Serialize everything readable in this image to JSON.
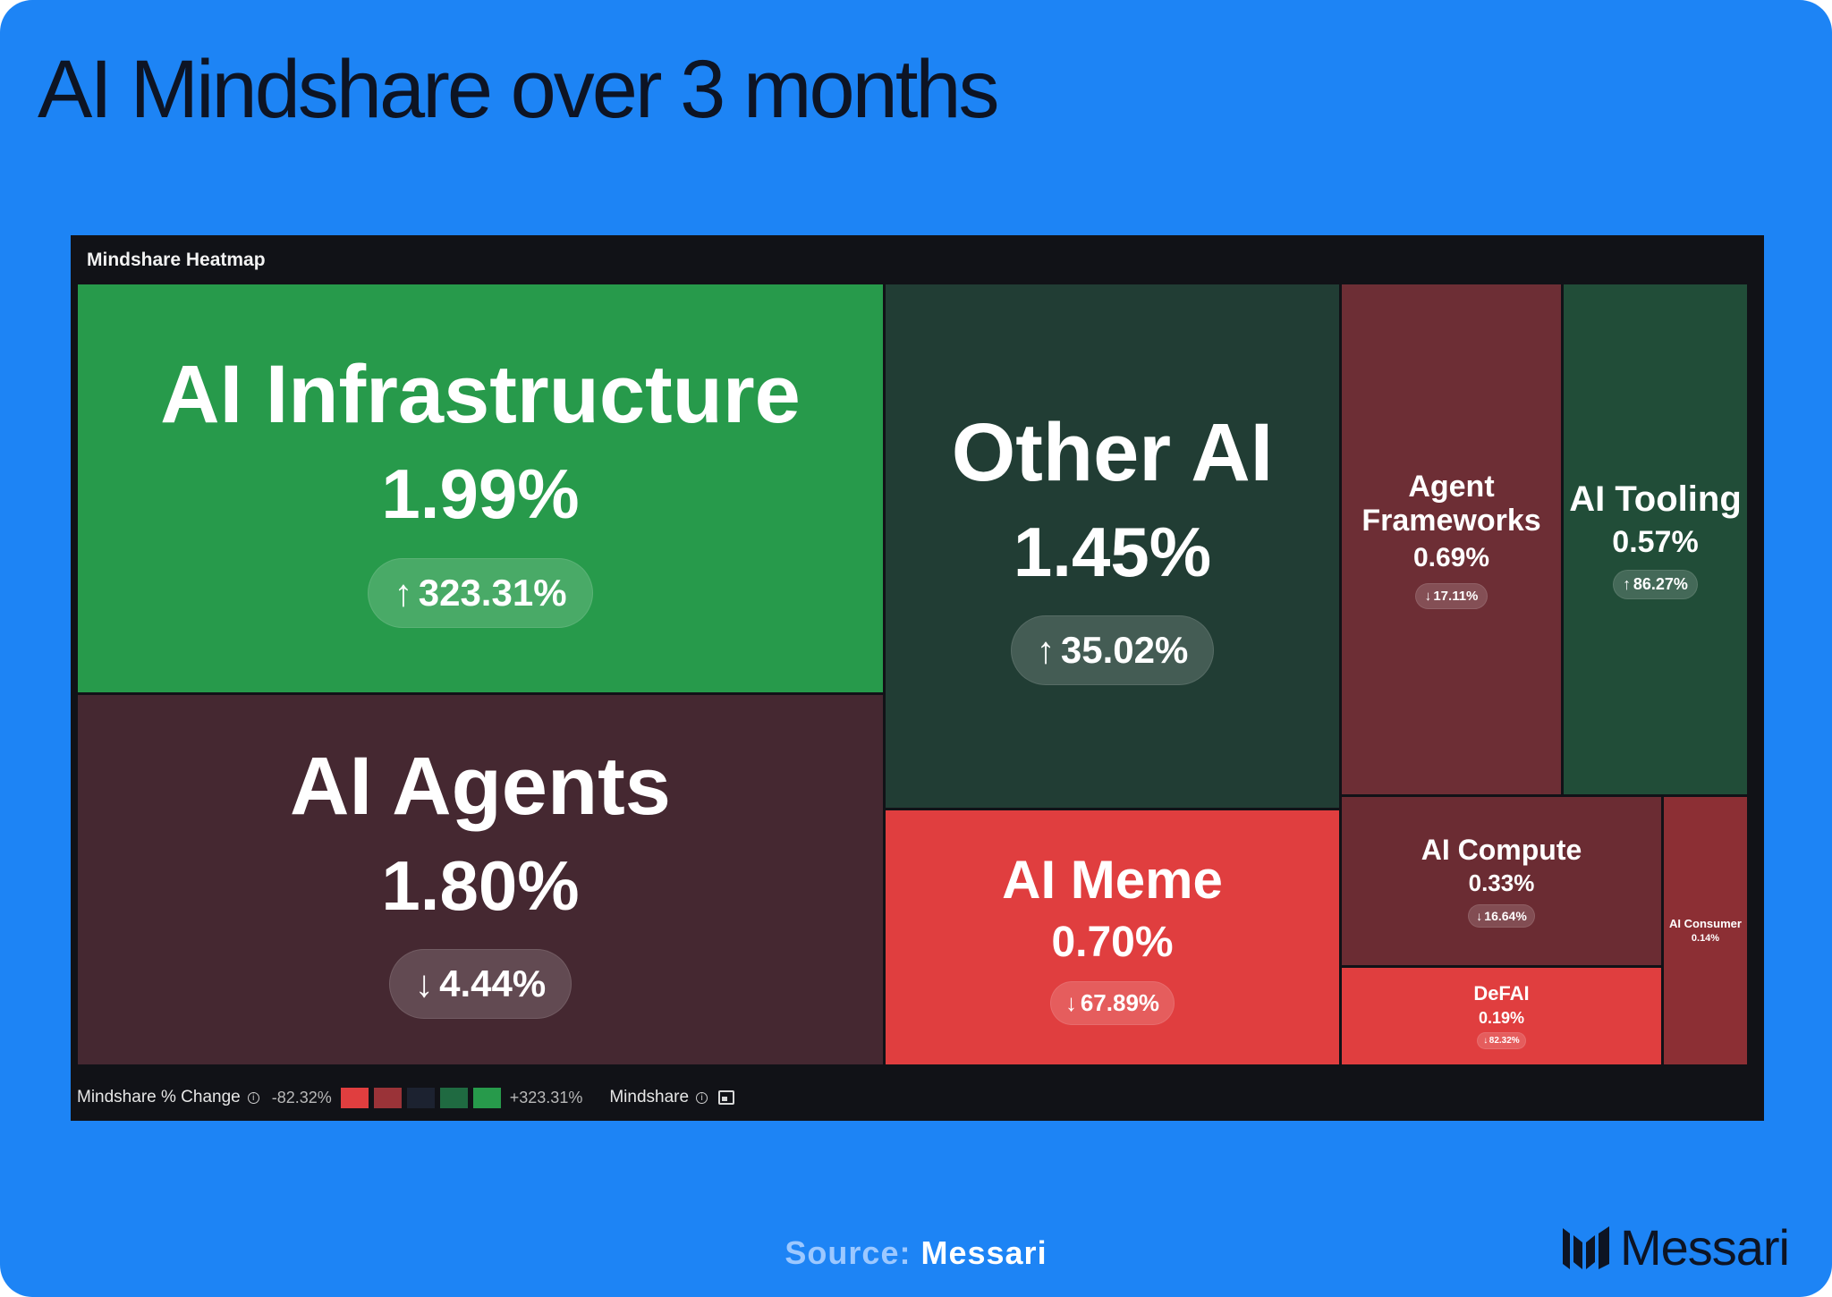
{
  "headline": "AI Mindshare over 3 months",
  "panel_title": "Mindshare Heatmap",
  "chart_data": {
    "type": "heatmap",
    "title": "Mindshare Heatmap",
    "metric": "Mindshare",
    "color_metric": "Mindshare % Change",
    "color_range": [
      "-82.32%",
      "+323.31%"
    ],
    "items": [
      {
        "name": "AI Infrastructure",
        "mindshare": 1.99,
        "mindshare_label": "1.99%",
        "change": 323.31,
        "change_label": "323.31%",
        "direction": "up",
        "color": "#279a4b"
      },
      {
        "name": "AI Agents",
        "mindshare": 1.8,
        "mindshare_label": "1.80%",
        "change": -4.44,
        "change_label": "4.44%",
        "direction": "down",
        "color": "#452831"
      },
      {
        "name": "Other AI",
        "mindshare": 1.45,
        "mindshare_label": "1.45%",
        "change": 35.02,
        "change_label": "35.02%",
        "direction": "up",
        "color": "#213d34"
      },
      {
        "name": "AI Meme",
        "mindshare": 0.7,
        "mindshare_label": "0.70%",
        "change": -67.89,
        "change_label": "67.89%",
        "direction": "down",
        "color": "#e03e3f"
      },
      {
        "name": "Agent Frameworks",
        "mindshare": 0.69,
        "mindshare_label": "0.69%",
        "change": -17.11,
        "change_label": "17.11%",
        "direction": "down",
        "color": "#6d2e35"
      },
      {
        "name": "AI Tooling",
        "mindshare": 0.57,
        "mindshare_label": "0.57%",
        "change": 86.27,
        "change_label": "86.27%",
        "direction": "up",
        "color": "#214d38"
      },
      {
        "name": "AI Compute",
        "mindshare": 0.33,
        "mindshare_label": "0.33%",
        "change": -16.64,
        "change_label": "16.64%",
        "direction": "down",
        "color": "#6b2c33"
      },
      {
        "name": "DeFAI",
        "mindshare": 0.19,
        "mindshare_label": "0.19%",
        "change": -82.32,
        "change_label": "82.32%",
        "direction": "down",
        "color": "#e03e3f"
      },
      {
        "name": "AI Consumer",
        "mindshare": 0.14,
        "mindshare_label": "0.14%",
        "change": null,
        "change_label": "",
        "direction": "",
        "color": "#8c2f34"
      }
    ]
  },
  "legend": {
    "change_label": "Mindshare % Change",
    "min_label": "-82.32%",
    "max_label": "+323.31%",
    "swatches": [
      "#e03e3f",
      "#9a3338",
      "#1c2230",
      "#1f6a41",
      "#279a4b"
    ],
    "size_label": "Mindshare"
  },
  "footer": {
    "source_label": "Source:",
    "source_name": "Messari",
    "brand": "Messari"
  }
}
